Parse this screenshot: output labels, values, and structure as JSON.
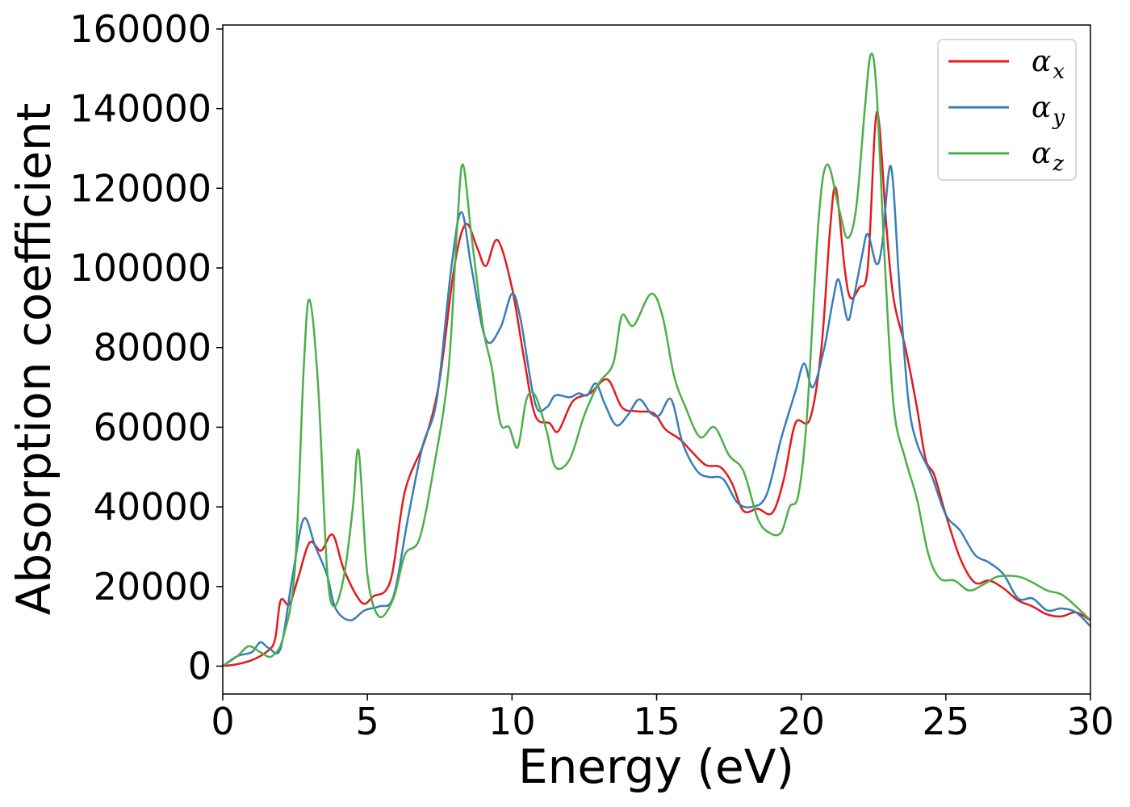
{
  "chart_data": {
    "type": "line",
    "xlabel": "Energy (eV)",
    "ylabel": "Absorption coefficient",
    "xlim": [
      0,
      30
    ],
    "ylim": [
      -7000,
      161000
    ],
    "xticks": [
      0,
      5,
      10,
      15,
      20,
      25,
      30
    ],
    "yticks": [
      0,
      20000,
      40000,
      60000,
      80000,
      100000,
      120000,
      140000,
      160000
    ],
    "grid": false,
    "legend_position": "top-right",
    "series": [
      {
        "name": "α",
        "subscript": "x",
        "color": "#e41a1c",
        "points": [
          [
            0,
            0
          ],
          [
            0.5,
            500
          ],
          [
            1.0,
            1500
          ],
          [
            1.5,
            3500
          ],
          [
            1.8,
            6500
          ],
          [
            2.0,
            16500
          ],
          [
            2.3,
            15500
          ],
          [
            2.6,
            22000
          ],
          [
            3.0,
            31000
          ],
          [
            3.4,
            29000
          ],
          [
            3.8,
            33000
          ],
          [
            4.2,
            24000
          ],
          [
            4.8,
            16000
          ],
          [
            5.2,
            17500
          ],
          [
            5.8,
            21500
          ],
          [
            6.3,
            44000
          ],
          [
            7.0,
            57000
          ],
          [
            7.5,
            72000
          ],
          [
            8.0,
            100000
          ],
          [
            8.4,
            111000
          ],
          [
            8.8,
            105000
          ],
          [
            9.1,
            100500
          ],
          [
            9.5,
            107000
          ],
          [
            10.0,
            95000
          ],
          [
            10.4,
            78000
          ],
          [
            10.8,
            63000
          ],
          [
            11.3,
            61000
          ],
          [
            11.6,
            59000
          ],
          [
            12.1,
            66500
          ],
          [
            12.7,
            68500
          ],
          [
            13.3,
            72000
          ],
          [
            13.8,
            65000
          ],
          [
            14.3,
            64000
          ],
          [
            14.9,
            63500
          ],
          [
            15.3,
            59500
          ],
          [
            15.8,
            57000
          ],
          [
            16.2,
            54000
          ],
          [
            16.7,
            50500
          ],
          [
            17.2,
            50000
          ],
          [
            17.6,
            46000
          ],
          [
            18.0,
            39000
          ],
          [
            18.5,
            39500
          ],
          [
            19.0,
            38500
          ],
          [
            19.4,
            47000
          ],
          [
            19.8,
            61000
          ],
          [
            20.3,
            62000
          ],
          [
            20.7,
            80000
          ],
          [
            21.0,
            110000
          ],
          [
            21.2,
            120000
          ],
          [
            21.5,
            100000
          ],
          [
            21.7,
            92500
          ],
          [
            22.0,
            95000
          ],
          [
            22.3,
            100000
          ],
          [
            22.55,
            135000
          ],
          [
            22.7,
            136000
          ],
          [
            22.95,
            110000
          ],
          [
            23.2,
            92000
          ],
          [
            23.6,
            80000
          ],
          [
            24.0,
            65000
          ],
          [
            24.3,
            52000
          ],
          [
            24.6,
            48000
          ],
          [
            25.0,
            38000
          ],
          [
            25.5,
            27000
          ],
          [
            26.0,
            21000
          ],
          [
            26.5,
            21500
          ],
          [
            27.0,
            19500
          ],
          [
            27.5,
            16500
          ],
          [
            28.0,
            15000
          ],
          [
            28.5,
            13000
          ],
          [
            29.0,
            12500
          ],
          [
            29.5,
            13500
          ],
          [
            30.0,
            11500
          ]
        ]
      },
      {
        "name": "α",
        "subscript": "y",
        "color": "#377eb8",
        "points": [
          [
            0,
            0
          ],
          [
            0.5,
            2500
          ],
          [
            1.0,
            3500
          ],
          [
            1.3,
            6000
          ],
          [
            1.6,
            4500
          ],
          [
            2.0,
            4500
          ],
          [
            2.4,
            22000
          ],
          [
            2.8,
            37000
          ],
          [
            3.2,
            30000
          ],
          [
            3.6,
            23000
          ],
          [
            3.9,
            14500
          ],
          [
            4.4,
            11500
          ],
          [
            4.9,
            14000
          ],
          [
            5.4,
            15000
          ],
          [
            5.9,
            17500
          ],
          [
            6.4,
            37000
          ],
          [
            6.9,
            55000
          ],
          [
            7.4,
            67000
          ],
          [
            7.9,
            100000
          ],
          [
            8.25,
            114000
          ],
          [
            8.6,
            100000
          ],
          [
            9.1,
            82000
          ],
          [
            9.6,
            85000
          ],
          [
            10.0,
            93500
          ],
          [
            10.3,
            87000
          ],
          [
            10.8,
            66000
          ],
          [
            11.2,
            65000
          ],
          [
            11.5,
            68000
          ],
          [
            12.0,
            67500
          ],
          [
            12.3,
            68500
          ],
          [
            12.6,
            68000
          ],
          [
            12.9,
            71000
          ],
          [
            13.2,
            66000
          ],
          [
            13.6,
            60500
          ],
          [
            14.0,
            63000
          ],
          [
            14.4,
            67000
          ],
          [
            14.8,
            63500
          ],
          [
            15.1,
            63000
          ],
          [
            15.5,
            67000
          ],
          [
            15.9,
            56000
          ],
          [
            16.4,
            49000
          ],
          [
            16.8,
            47500
          ],
          [
            17.3,
            47000
          ],
          [
            17.8,
            41000
          ],
          [
            18.3,
            40000
          ],
          [
            18.8,
            43000
          ],
          [
            19.3,
            57000
          ],
          [
            19.8,
            69000
          ],
          [
            20.1,
            76000
          ],
          [
            20.4,
            70000
          ],
          [
            20.8,
            80000
          ],
          [
            21.1,
            92000
          ],
          [
            21.3,
            97000
          ],
          [
            21.6,
            87000
          ],
          [
            21.8,
            92000
          ],
          [
            22.1,
            103000
          ],
          [
            22.3,
            108500
          ],
          [
            22.6,
            101000
          ],
          [
            22.8,
            106000
          ],
          [
            23.1,
            125500
          ],
          [
            23.4,
            95000
          ],
          [
            23.7,
            67000
          ],
          [
            24.0,
            56000
          ],
          [
            24.5,
            48000
          ],
          [
            25.0,
            38000
          ],
          [
            25.5,
            34000
          ],
          [
            26.0,
            28000
          ],
          [
            26.5,
            26000
          ],
          [
            27.0,
            23000
          ],
          [
            27.5,
            17000
          ],
          [
            28.0,
            17000
          ],
          [
            28.5,
            14000
          ],
          [
            29.0,
            14500
          ],
          [
            29.5,
            13500
          ],
          [
            30.0,
            10000
          ]
        ]
      },
      {
        "name": "α",
        "subscript": "z",
        "color": "#4daf4a",
        "points": [
          [
            0,
            0
          ],
          [
            0.5,
            2500
          ],
          [
            0.9,
            5000
          ],
          [
            1.3,
            3500
          ],
          [
            1.7,
            2500
          ],
          [
            2.1,
            7500
          ],
          [
            2.5,
            25000
          ],
          [
            2.8,
            75000
          ],
          [
            3.0,
            92000
          ],
          [
            3.3,
            70000
          ],
          [
            3.6,
            25000
          ],
          [
            3.85,
            15000
          ],
          [
            4.2,
            23000
          ],
          [
            4.5,
            40000
          ],
          [
            4.7,
            54000
          ],
          [
            5.0,
            23000
          ],
          [
            5.4,
            12500
          ],
          [
            5.9,
            17000
          ],
          [
            6.3,
            28000
          ],
          [
            6.8,
            32000
          ],
          [
            7.3,
            50000
          ],
          [
            7.8,
            74000
          ],
          [
            8.1,
            110000
          ],
          [
            8.3,
            126000
          ],
          [
            8.6,
            108000
          ],
          [
            9.0,
            85000
          ],
          [
            9.3,
            75000
          ],
          [
            9.6,
            61000
          ],
          [
            9.9,
            60000
          ],
          [
            10.2,
            55000
          ],
          [
            10.5,
            67000
          ],
          [
            10.8,
            68000
          ],
          [
            11.2,
            59000
          ],
          [
            11.5,
            50000
          ],
          [
            12.0,
            52000
          ],
          [
            12.5,
            63000
          ],
          [
            13.0,
            71000
          ],
          [
            13.5,
            76000
          ],
          [
            13.8,
            88000
          ],
          [
            14.2,
            85500
          ],
          [
            14.8,
            93500
          ],
          [
            15.2,
            88000
          ],
          [
            15.6,
            73000
          ],
          [
            16.0,
            65000
          ],
          [
            16.5,
            57500
          ],
          [
            17.0,
            60000
          ],
          [
            17.5,
            53000
          ],
          [
            18.0,
            49000
          ],
          [
            18.5,
            37000
          ],
          [
            18.9,
            33500
          ],
          [
            19.3,
            33500
          ],
          [
            19.6,
            40000
          ],
          [
            19.9,
            43000
          ],
          [
            20.2,
            63000
          ],
          [
            20.6,
            112000
          ],
          [
            20.9,
            126000
          ],
          [
            21.3,
            115000
          ],
          [
            21.6,
            107500
          ],
          [
            21.9,
            115000
          ],
          [
            22.2,
            140000
          ],
          [
            22.4,
            153500
          ],
          [
            22.6,
            145000
          ],
          [
            22.9,
            100000
          ],
          [
            23.2,
            65000
          ],
          [
            23.6,
            52000
          ],
          [
            24.0,
            42000
          ],
          [
            24.4,
            28000
          ],
          [
            24.8,
            22000
          ],
          [
            25.3,
            21500
          ],
          [
            25.8,
            19000
          ],
          [
            26.3,
            20500
          ],
          [
            26.8,
            22500
          ],
          [
            27.5,
            22500
          ],
          [
            28.0,
            21000
          ],
          [
            28.5,
            19000
          ],
          [
            29.0,
            18000
          ],
          [
            29.5,
            15000
          ],
          [
            30.0,
            11500
          ]
        ]
      }
    ]
  }
}
